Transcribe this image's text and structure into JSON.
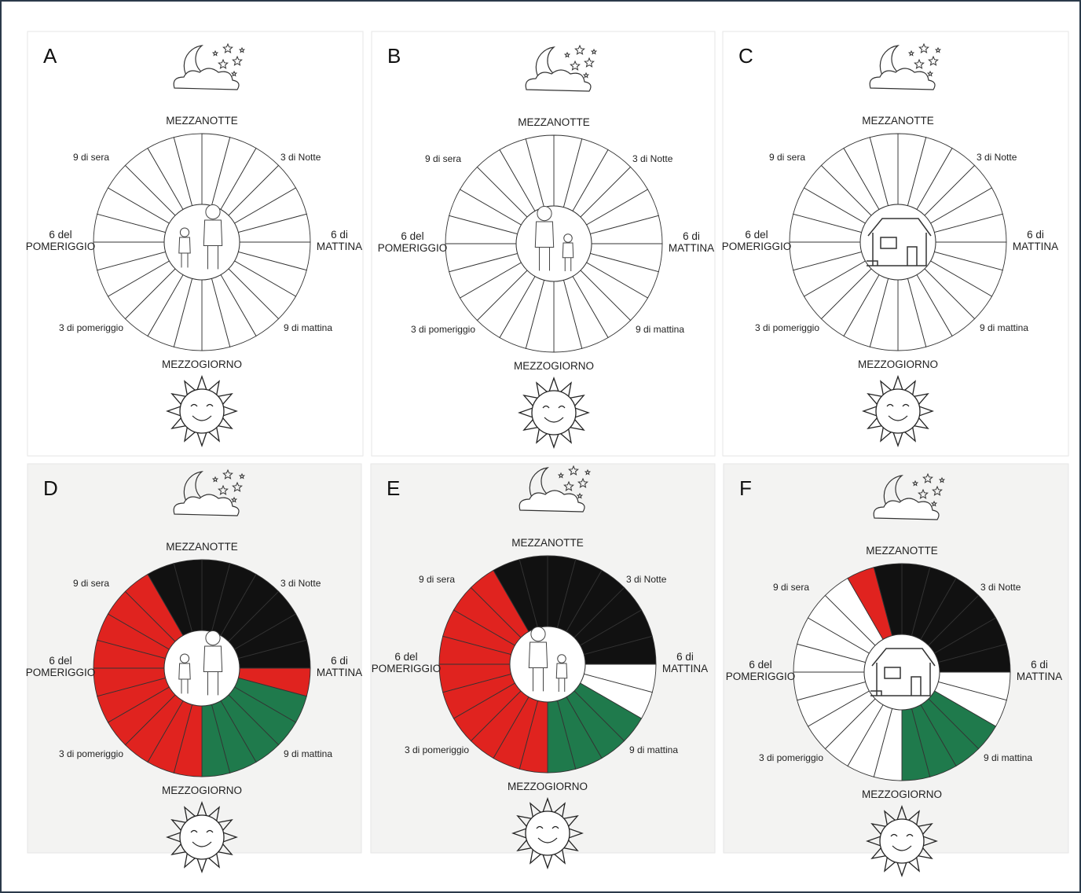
{
  "panels": [
    {
      "letter": "A",
      "top": "MEZZANOTTE",
      "bottom": "MEZZOGIORNO",
      "upper_left": "9 di sera",
      "upper_right": "3 di Notte",
      "left": [
        "6 del",
        "POMERIGGIO"
      ],
      "right": [
        "6 di",
        "MATTINA"
      ],
      "lower_left": "3 di pomeriggio",
      "lower_right": "9 di mattina"
    },
    {
      "letter": "B",
      "top": "MEZZANOTTE",
      "bottom": "MEZZOGIORNO",
      "upper_left": "9 di sera",
      "upper_right": "3 di Notte",
      "left": [
        "6 del",
        "POMERIGGIO"
      ],
      "right": [
        "6 di",
        "MATTINA"
      ],
      "lower_left": "3 di pomeriggio",
      "lower_right": "9 di mattina"
    },
    {
      "letter": "C",
      "top": "MEZZANOTTE",
      "bottom": "MEZZOGIORNO",
      "upper_left": "9 di sera",
      "upper_right": "3 di Notte",
      "left": [
        "6 del",
        "POMERIGGIO"
      ],
      "right": [
        "6 di",
        "MATTINA"
      ],
      "lower_left": "3 di pomeriggio",
      "lower_right": "9 di mattina"
    },
    {
      "letter": "D",
      "top": "MEZZANOTTE",
      "bottom": "MEZZOGIORNO",
      "upper_left": "9 di sera",
      "upper_right": "3 di Notte",
      "left": [
        "6 del",
        "POMERIGGIO"
      ],
      "right": [
        "6 di",
        "MATTINA"
      ],
      "lower_left": "3 di pomeriggio",
      "lower_right": "9 di mattina",
      "segments": [
        "#111111",
        "#111111",
        "#111111",
        "#111111",
        "#111111",
        "#111111",
        "#e0231f",
        "#1f7a4c",
        "#1f7a4c",
        "#1f7a4c",
        "#1f7a4c",
        "#1f7a4c",
        "#e0231f",
        "#e0231f",
        "#e0231f",
        "#e0231f",
        "#e0231f",
        "#e0231f",
        "#e0231f",
        "#e0231f",
        "#e0231f",
        "#e0231f",
        "#111111",
        "#111111"
      ]
    },
    {
      "letter": "E",
      "top": "MEZZANOTTE",
      "bottom": "MEZZOGIORNO",
      "upper_left": "9 di sera",
      "upper_right": "3 di Notte",
      "left": [
        "6 del",
        "POMERIGGIO"
      ],
      "right": [
        "6 di",
        "MATTINA"
      ],
      "lower_left": "3 di pomeriggio",
      "lower_right": "9 di mattina",
      "segments": [
        "#111111",
        "#111111",
        "#111111",
        "#111111",
        "#111111",
        "#111111",
        "#ffffff",
        "#ffffff",
        "#1f7a4c",
        "#1f7a4c",
        "#1f7a4c",
        "#1f7a4c",
        "#e0231f",
        "#e0231f",
        "#e0231f",
        "#e0231f",
        "#e0231f",
        "#e0231f",
        "#e0231f",
        "#e0231f",
        "#e0231f",
        "#e0231f",
        "#111111",
        "#111111"
      ]
    },
    {
      "letter": "F",
      "top": "MEZZANOTTE",
      "bottom": "MEZZOGIORNO",
      "upper_left": "9 di sera",
      "upper_right": "3 di Notte",
      "left": [
        "6 del",
        "POMERIGGIO"
      ],
      "right": [
        "6 di",
        "MATTINA"
      ],
      "lower_left": "3 di pomeriggio",
      "lower_right": "9 di mattina",
      "segments": [
        "#111111",
        "#111111",
        "#111111",
        "#111111",
        "#111111",
        "#111111",
        "#ffffff",
        "#ffffff",
        "#1f7a4c",
        "#1f7a4c",
        "#1f7a4c",
        "#1f7a4c",
        "#ffffff",
        "#ffffff",
        "#ffffff",
        "#ffffff",
        "#ffffff",
        "#ffffff",
        "#ffffff",
        "#ffffff",
        "#ffffff",
        "#ffffff",
        "#e0231f",
        "#111111"
      ]
    }
  ]
}
